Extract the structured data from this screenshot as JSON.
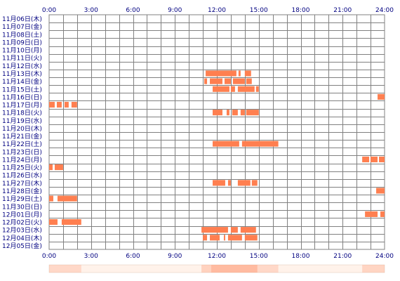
{
  "chart_data": {
    "type": "heatmap",
    "title": "",
    "xlabel": "",
    "ylabel": "",
    "x_ticks": [
      "0:00",
      "3:00",
      "6:00",
      "9:00",
      "12:00",
      "15:00",
      "18:00",
      "21:00",
      "24:00"
    ],
    "x_range_hours": [
      0,
      24
    ],
    "grid": true,
    "colors": {
      "bar": "#ff7f50",
      "bar_light": "#ffd0b8",
      "grid": "#808080",
      "text": "#000080",
      "strip": "#ffe8d8"
    },
    "rows": [
      {
        "label": "11月06日(木)",
        "segments": []
      },
      {
        "label": "11月07日(金)",
        "segments": []
      },
      {
        "label": "11月08日(土)",
        "segments": []
      },
      {
        "label": "11月09日(日)",
        "segments": []
      },
      {
        "label": "11月10日(月)",
        "segments": []
      },
      {
        "label": "11月11日(火)",
        "segments": []
      },
      {
        "label": "11月12日(水)",
        "segments": []
      },
      {
        "label": "11月13日(木)",
        "segments": [
          [
            11.2,
            13.4
          ],
          [
            13.55,
            13.7
          ],
          [
            14.0,
            14.45
          ]
        ]
      },
      {
        "label": "11月14日(金)",
        "segments": [
          [
            11.1,
            11.3
          ],
          [
            11.5,
            12.4
          ],
          [
            12.55,
            13.0
          ],
          [
            13.15,
            14.0
          ],
          [
            14.1,
            14.5
          ]
        ]
      },
      {
        "label": "11月15日(土)",
        "segments": [
          [
            11.7,
            12.9
          ],
          [
            13.0,
            13.3
          ],
          [
            13.5,
            14.7
          ],
          [
            14.8,
            15.0
          ]
        ]
      },
      {
        "label": "11月16日(日)",
        "segments": [
          [
            23.5,
            24.0
          ]
        ]
      },
      {
        "label": "11月17日(月)",
        "segments": [
          [
            0.0,
            0.4
          ],
          [
            0.55,
            0.9
          ],
          [
            1.1,
            1.4
          ],
          [
            1.6,
            2.0
          ]
        ]
      },
      {
        "label": "11月18日(火)",
        "segments": [
          [
            11.7,
            12.4
          ],
          [
            12.7,
            12.9
          ],
          [
            13.1,
            13.5
          ],
          [
            13.7,
            14.0
          ],
          [
            14.1,
            15.0
          ]
        ]
      },
      {
        "label": "11月19日(水)",
        "segments": []
      },
      {
        "label": "11月20日(木)",
        "segments": []
      },
      {
        "label": "11月21日(金)",
        "segments": []
      },
      {
        "label": "11月22日(土)",
        "segments": [
          [
            11.7,
            13.6
          ],
          [
            13.8,
            16.4
          ]
        ]
      },
      {
        "label": "11月23日(日)",
        "segments": []
      },
      {
        "label": "11月24日(月)",
        "segments": [
          [
            22.4,
            22.9
          ],
          [
            23.0,
            23.5
          ],
          [
            23.6,
            24.0
          ]
        ]
      },
      {
        "label": "11月25日(火)",
        "segments": [
          [
            0.0,
            0.25
          ],
          [
            0.4,
            1.0
          ]
        ]
      },
      {
        "label": "11月26日(水)",
        "segments": []
      },
      {
        "label": "11月27日(木)",
        "segments": [
          [
            11.7,
            12.6
          ],
          [
            12.8,
            13.0
          ],
          [
            13.5,
            14.4
          ],
          [
            14.5,
            14.9
          ]
        ]
      },
      {
        "label": "11月28日(金)",
        "segments": [
          [
            23.4,
            24.0
          ]
        ]
      },
      {
        "label": "11月29日(土)",
        "segments": [
          [
            0.0,
            0.3
          ],
          [
            0.6,
            2.0
          ]
        ]
      },
      {
        "label": "11月30日(日)",
        "segments": []
      },
      {
        "label": "12月01日(月)",
        "segments": [
          [
            22.6,
            23.5
          ],
          [
            23.7,
            24.0
          ]
        ]
      },
      {
        "label": "12月02日(火)",
        "segments": [
          [
            0.0,
            0.6
          ],
          [
            0.9,
            2.3
          ]
        ]
      },
      {
        "label": "12月03日(水)",
        "segments": [
          [
            10.9,
            12.8
          ],
          [
            13.0,
            13.5
          ],
          [
            13.7,
            14.8
          ]
        ]
      },
      {
        "label": "12月04日(木)",
        "segments": [
          [
            11.0,
            11.3
          ],
          [
            11.5,
            12.2
          ],
          [
            12.5,
            12.6
          ],
          [
            12.8,
            13.8
          ],
          [
            14.0,
            14.9
          ]
        ]
      },
      {
        "label": "12月05日(金)",
        "segments": []
      }
    ],
    "summary_strip": [
      {
        "range": [
          0.0,
          2.3
        ],
        "intensity": 0.45
      },
      {
        "range": [
          2.3,
          10.9
        ],
        "intensity": 0.06
      },
      {
        "range": [
          10.9,
          11.6
        ],
        "intensity": 0.55
      },
      {
        "range": [
          11.6,
          14.9
        ],
        "intensity": 0.9
      },
      {
        "range": [
          14.9,
          16.4
        ],
        "intensity": 0.45
      },
      {
        "range": [
          16.4,
          22.4
        ],
        "intensity": 0.06
      },
      {
        "range": [
          22.4,
          24.0
        ],
        "intensity": 0.5
      }
    ]
  }
}
